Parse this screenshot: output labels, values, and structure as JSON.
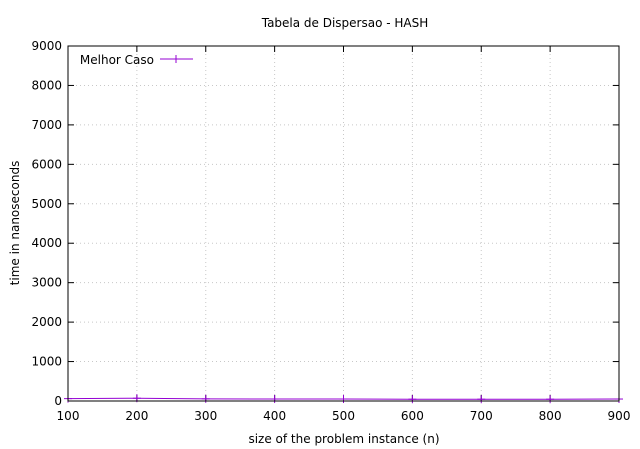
{
  "chart_data": {
    "type": "line",
    "title": "Tabela de Dispersao - HASH",
    "xlabel": "size of the problem instance (n)",
    "ylabel": "time in nanoseconds",
    "xlim": [
      100,
      900
    ],
    "ylim": [
      0,
      9000
    ],
    "x_ticks": [
      "100",
      "200",
      "300",
      "400",
      "500",
      "600",
      "700",
      "800",
      "900"
    ],
    "y_ticks": [
      "0",
      "1000",
      "2000",
      "3000",
      "4000",
      "5000",
      "6000",
      "7000",
      "8000",
      "9000"
    ],
    "grid": true,
    "legend_position": "top-left",
    "x": [
      100,
      200,
      300,
      400,
      500,
      600,
      700,
      800,
      900
    ],
    "series": [
      {
        "name": "Melhor Caso",
        "color": "#9400d3",
        "marker": "plus",
        "values": [
          60,
          70,
          55,
          50,
          50,
          45,
          45,
          45,
          50
        ]
      }
    ]
  }
}
